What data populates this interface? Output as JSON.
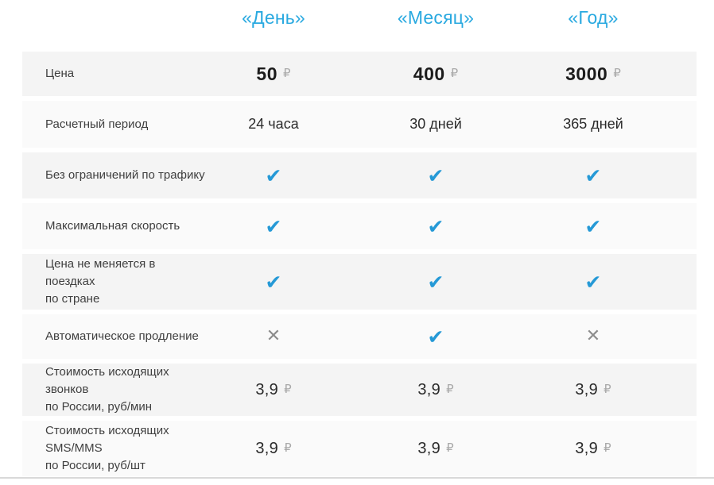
{
  "table": {
    "columns": [
      {
        "label": "«День»"
      },
      {
        "label": "«Месяц»"
      },
      {
        "label": "«Год»"
      }
    ],
    "rows": [
      {
        "label": "Цена",
        "type": "price",
        "values": [
          {
            "amount": "50",
            "currency": "₽"
          },
          {
            "amount": "400",
            "currency": "₽"
          },
          {
            "amount": "3000",
            "currency": "₽"
          }
        ]
      },
      {
        "label": "Расчетный период",
        "type": "text",
        "values": [
          {
            "text": "24 часа"
          },
          {
            "text": "30 дней"
          },
          {
            "text": "365 дней"
          }
        ]
      },
      {
        "label": "Без ограничений по трафику",
        "type": "boolean",
        "values": [
          {
            "icon": "✔"
          },
          {
            "icon": "✔"
          },
          {
            "icon": "✔"
          }
        ]
      },
      {
        "label": "Максимальная скорость",
        "type": "boolean",
        "values": [
          {
            "icon": "✔"
          },
          {
            "icon": "✔"
          },
          {
            "icon": "✔"
          }
        ]
      },
      {
        "label": "Цена не меняется в поездках\nпо стране",
        "type": "boolean",
        "values": [
          {
            "icon": "✔"
          },
          {
            "icon": "✔"
          },
          {
            "icon": "✔"
          }
        ]
      },
      {
        "label": "Автоматическое продление",
        "type": "boolean",
        "values": [
          {
            "icon": "✕"
          },
          {
            "icon": "✔"
          },
          {
            "icon": "✕"
          }
        ]
      },
      {
        "label": "Стоимость исходящих звонков\nпо России, руб/мин",
        "type": "price",
        "values": [
          {
            "amount": "3,9",
            "currency": "₽"
          },
          {
            "amount": "3,9",
            "currency": "₽"
          },
          {
            "amount": "3,9",
            "currency": "₽"
          }
        ]
      },
      {
        "label": "Стоимость исходящих SMS/MMS\nпо России, руб/шт",
        "type": "price",
        "values": [
          {
            "amount": "3,9",
            "currency": "₽"
          },
          {
            "amount": "3,9",
            "currency": "₽"
          },
          {
            "amount": "3,9",
            "currency": "₽"
          }
        ]
      }
    ],
    "colors": {
      "header_blue": "#29a9e0",
      "check_blue": "#2599d6",
      "cross_gray": "#8c8c8c",
      "row_bg_a": "#f4f4f4",
      "row_bg_b": "#fafafa",
      "divider": "#d9d9d9"
    }
  }
}
